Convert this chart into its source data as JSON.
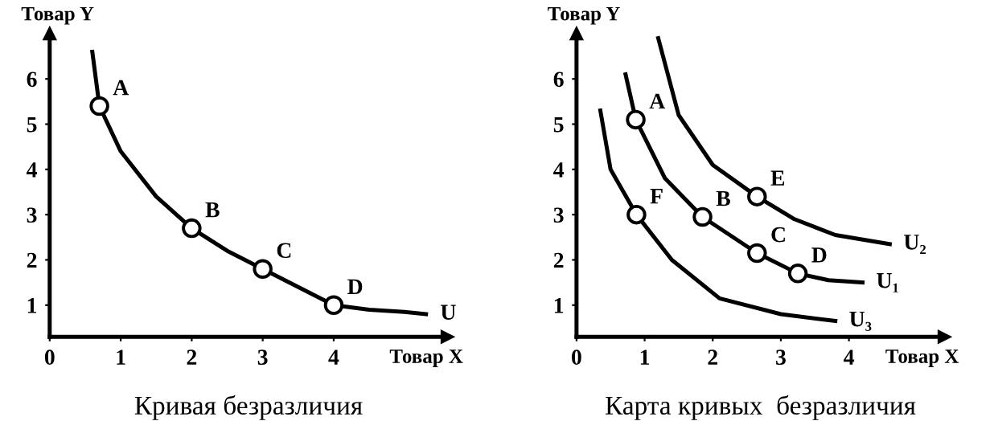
{
  "chart_data": [
    {
      "type": "line",
      "title": "Кривая безразличия",
      "xlabel": "Товар X",
      "ylabel": "Товар Y",
      "xlim": [
        0,
        5.6
      ],
      "ylim": [
        0.3,
        7
      ],
      "xticks": [
        0,
        1,
        2,
        3,
        4
      ],
      "yticks": [
        1,
        2,
        3,
        4,
        5,
        6
      ],
      "grid": false,
      "series": [
        {
          "name": "U",
          "color": "#000000",
          "marker": "none",
          "x": [
            0.6,
            0.7,
            1,
            1.5,
            2,
            2.5,
            3,
            3.5,
            4,
            4.5,
            5,
            5.3
          ],
          "values": [
            6.6,
            5.4,
            4.4,
            3.4,
            2.7,
            2.2,
            1.8,
            1.4,
            1.0,
            0.9,
            0.85,
            0.8
          ]
        },
        {
          "type": "scatter",
          "color": "#000000",
          "marker": "circle",
          "x": [
            0.7,
            2,
            3,
            4
          ],
          "values": [
            5.4,
            2.7,
            1.8,
            1.0
          ]
        }
      ],
      "annotations": [
        {
          "text": "A",
          "x": 0.7,
          "y": 5.4
        },
        {
          "text": "B",
          "x": 2,
          "y": 2.7
        },
        {
          "text": "C",
          "x": 3,
          "y": 1.8
        },
        {
          "text": "D",
          "x": 4,
          "y": 1.0
        }
      ]
    },
    {
      "type": "line",
      "title": "Карта кривых  безразличия",
      "xlabel": "Товар X",
      "ylabel": "Товар Y",
      "xlim": [
        0,
        5.4
      ],
      "ylim": [
        0.3,
        7
      ],
      "xticks": [
        0,
        1,
        2,
        3,
        4
      ],
      "yticks": [
        1,
        2,
        3,
        4,
        5,
        6
      ],
      "grid": false,
      "series": [
        {
          "name": "U₂",
          "color": "#000000",
          "marker": "none",
          "x": [
            1.2,
            1.5,
            2,
            2.65,
            3.2,
            3.8,
            4.6
          ],
          "values": [
            6.9,
            5.2,
            4.1,
            3.4,
            2.9,
            2.55,
            2.35
          ]
        },
        {
          "name": "U₁",
          "color": "#000000",
          "marker": "none",
          "x": [
            0.72,
            0.87,
            1.3,
            1.85,
            2.65,
            3.25,
            3.7,
            4.2
          ],
          "values": [
            6.1,
            5.1,
            3.8,
            2.95,
            2.15,
            1.7,
            1.55,
            1.5
          ]
        },
        {
          "name": "U₃",
          "color": "#000000",
          "marker": "none",
          "x": [
            0.35,
            0.5,
            0.88,
            1.4,
            2.1,
            3.0,
            3.8
          ],
          "values": [
            5.3,
            4.0,
            3.0,
            2.0,
            1.15,
            0.8,
            0.65
          ]
        },
        {
          "type": "scatter",
          "color": "#000000",
          "marker": "circle",
          "x": [
            0.87,
            0.88,
            1.85,
            2.65,
            3.25,
            2.65
          ],
          "values": [
            5.1,
            3.0,
            2.95,
            2.15,
            1.7,
            3.4
          ]
        }
      ],
      "annotations": [
        {
          "text": "A",
          "x": 0.87,
          "y": 5.1
        },
        {
          "text": "F",
          "x": 0.88,
          "y": 3.0
        },
        {
          "text": "B",
          "x": 1.85,
          "y": 2.95
        },
        {
          "text": "C",
          "x": 2.65,
          "y": 2.15
        },
        {
          "text": "D",
          "x": 3.25,
          "y": 1.7
        },
        {
          "text": "E",
          "x": 2.65,
          "y": 3.4
        }
      ]
    }
  ]
}
